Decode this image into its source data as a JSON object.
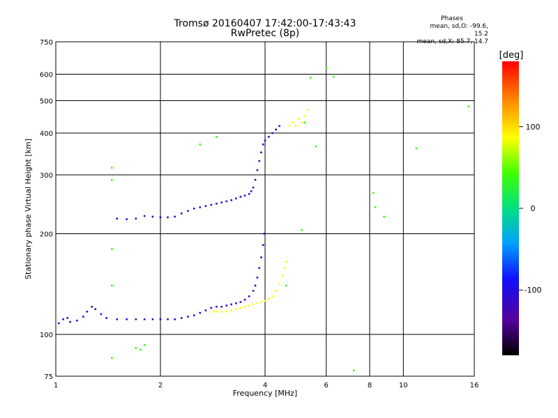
{
  "title_line1": "Tromsø 20160407 17:42:00-17:43:43",
  "title_line2": "RwPretec (8p)",
  "phases": {
    "header": "Phases",
    "line1": "mean, sd,O: -99.6, 15.2",
    "line2": "mean, sd,X:  85.7, 14.7"
  },
  "chart_data": {
    "type": "scatter",
    "xlabel": "Frequency [MHz]",
    "ylabel": "Stationary phase Virtual Height [km]",
    "x_scale": "log",
    "y_scale": "log",
    "xlim": [
      1,
      16
    ],
    "ylim": [
      75,
      750
    ],
    "x_ticks": [
      1,
      2,
      4,
      6,
      8,
      10,
      16
    ],
    "y_ticks": [
      75,
      100,
      200,
      300,
      400,
      500,
      600,
      750
    ],
    "grid": true,
    "colorbar": {
      "label": "[deg]",
      "range": [
        -180,
        180
      ],
      "ticks": [
        100,
        0,
        -100
      ]
    },
    "series": [
      {
        "values": [
          [
            1.02,
            108
          ],
          [
            1.05,
            111
          ],
          [
            1.08,
            112
          ],
          [
            1.1,
            109
          ],
          [
            1.15,
            110
          ],
          [
            1.2,
            113
          ],
          [
            1.23,
            117
          ],
          [
            1.27,
            121
          ],
          [
            1.3,
            119
          ],
          [
            1.35,
            115
          ],
          [
            1.4,
            112
          ],
          [
            1.5,
            111
          ],
          [
            1.6,
            111
          ],
          [
            1.7,
            111
          ],
          [
            1.8,
            111
          ],
          [
            1.9,
            111
          ],
          [
            2.0,
            111
          ],
          [
            2.1,
            111
          ],
          [
            2.2,
            111
          ],
          [
            2.3,
            112
          ],
          [
            2.4,
            113
          ],
          [
            2.5,
            114
          ],
          [
            2.6,
            116
          ],
          [
            2.7,
            118
          ],
          [
            2.8,
            120
          ],
          [
            2.9,
            121
          ],
          [
            3.0,
            121
          ],
          [
            3.1,
            122
          ],
          [
            3.2,
            123
          ],
          [
            3.3,
            124
          ],
          [
            3.4,
            125
          ],
          [
            3.5,
            127
          ],
          [
            3.6,
            130
          ],
          [
            3.7,
            135
          ],
          [
            3.75,
            140
          ],
          [
            3.8,
            148
          ],
          [
            3.85,
            158
          ],
          [
            3.9,
            170
          ],
          [
            3.95,
            185
          ],
          [
            3.98,
            200
          ]
        ],
        "color_deg": -110
      },
      {
        "values": [
          [
            2.85,
            117
          ],
          [
            2.9,
            117
          ],
          [
            3.0,
            117
          ],
          [
            3.1,
            117
          ],
          [
            3.2,
            118
          ],
          [
            3.3,
            119
          ],
          [
            3.4,
            120
          ],
          [
            3.5,
            121
          ],
          [
            3.6,
            122
          ],
          [
            3.7,
            123
          ],
          [
            3.8,
            124
          ],
          [
            3.9,
            125
          ],
          [
            4.0,
            126
          ],
          [
            4.1,
            128
          ],
          [
            4.2,
            130
          ],
          [
            4.3,
            135
          ],
          [
            4.4,
            142
          ],
          [
            4.5,
            150
          ],
          [
            4.55,
            158
          ],
          [
            4.6,
            165
          ]
        ],
        "color_deg": 85
      },
      {
        "values": [
          [
            1.5,
            222
          ],
          [
            1.6,
            221
          ],
          [
            1.7,
            222
          ],
          [
            1.8,
            226
          ],
          [
            1.9,
            225
          ],
          [
            2.0,
            224
          ],
          [
            2.1,
            224
          ],
          [
            2.2,
            225
          ],
          [
            2.3,
            230
          ],
          [
            2.4,
            234
          ],
          [
            2.5,
            238
          ],
          [
            2.6,
            240
          ],
          [
            2.7,
            242
          ],
          [
            2.8,
            244
          ],
          [
            2.9,
            246
          ],
          [
            3.0,
            248
          ],
          [
            3.1,
            250
          ],
          [
            3.2,
            252
          ],
          [
            3.3,
            255
          ],
          [
            3.4,
            258
          ],
          [
            3.5,
            260
          ],
          [
            3.6,
            263
          ],
          [
            3.65,
            268
          ],
          [
            3.7,
            275
          ],
          [
            3.75,
            290
          ],
          [
            3.8,
            310
          ],
          [
            3.85,
            330
          ],
          [
            3.9,
            350
          ],
          [
            3.95,
            370
          ],
          [
            4.0,
            380
          ],
          [
            4.1,
            390
          ],
          [
            4.2,
            400
          ],
          [
            4.3,
            410
          ],
          [
            4.4,
            420
          ]
        ],
        "color_deg": -110
      },
      {
        "values": [
          [
            4.7,
            420
          ],
          [
            4.8,
            430
          ],
          [
            4.9,
            420
          ],
          [
            5.0,
            440
          ],
          [
            5.1,
            430
          ],
          [
            5.2,
            450
          ],
          [
            5.3,
            470
          ]
        ],
        "color_deg": 85
      },
      {
        "values": [
          [
            1.45,
            140
          ],
          [
            1.45,
            315
          ],
          [
            1.45,
            290
          ],
          [
            1.45,
            180
          ],
          [
            1.7,
            91
          ],
          [
            1.75,
            90
          ],
          [
            1.8,
            93
          ],
          [
            1.45,
            85
          ],
          [
            2.6,
            370
          ],
          [
            2.9,
            390
          ],
          [
            4.6,
            140
          ],
          [
            5.1,
            205
          ],
          [
            5.2,
            430
          ],
          [
            5.4,
            585
          ],
          [
            5.6,
            365
          ],
          [
            6.0,
            625
          ],
          [
            6.3,
            590
          ],
          [
            7.2,
            78
          ],
          [
            8.2,
            265
          ],
          [
            8.3,
            240
          ],
          [
            8.8,
            225
          ],
          [
            10.9,
            360
          ],
          [
            15.4,
            480
          ]
        ],
        "color_deg": 40
      }
    ]
  }
}
